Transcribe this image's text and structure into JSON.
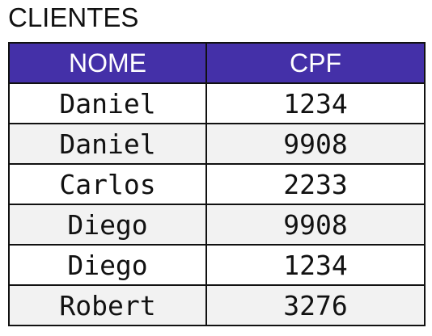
{
  "title": "CLIENTES",
  "colors": {
    "header_bg": "#4430a8",
    "header_text": "#ffffff",
    "stripe": "#f2f2f2"
  },
  "table": {
    "headers": [
      "NOME",
      "CPF"
    ],
    "rows": [
      [
        "Daniel",
        "1234"
      ],
      [
        "Daniel",
        "9908"
      ],
      [
        "Carlos",
        "2233"
      ],
      [
        "Diego",
        "9908"
      ],
      [
        "Diego",
        "1234"
      ],
      [
        "Robert",
        "3276"
      ]
    ]
  }
}
